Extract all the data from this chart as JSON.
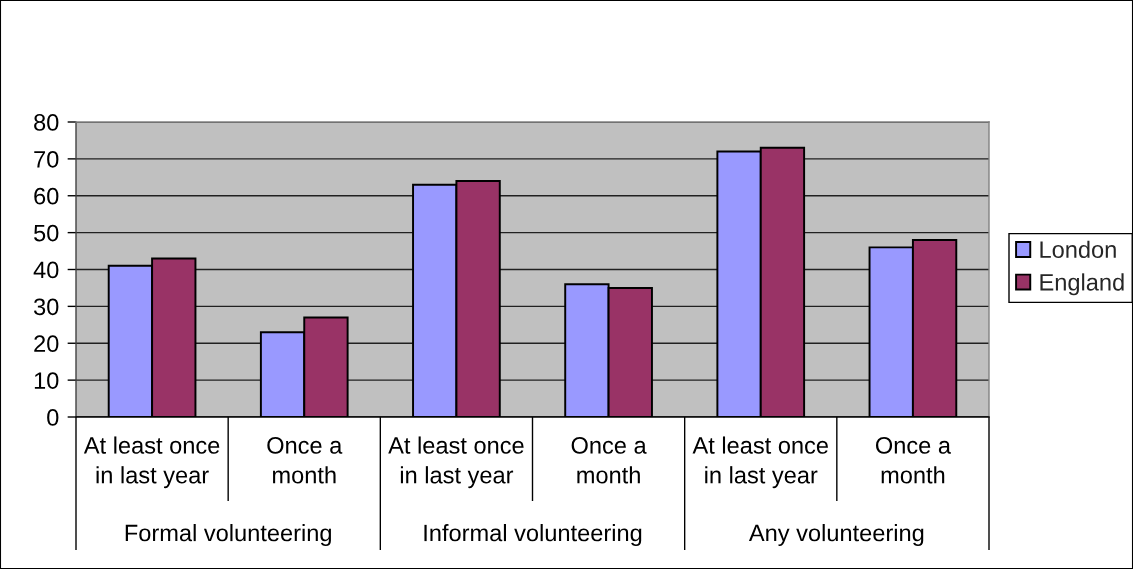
{
  "chart_data": {
    "type": "bar",
    "categories": [
      "At least once\nin last year",
      "Once a\nmonth",
      "At least once\nin last year",
      "Once a\nmonth",
      "At least once\nin last year",
      "Once a\nmonth"
    ],
    "series": [
      {
        "name": "London",
        "color": "#9999ff",
        "values": [
          41,
          23,
          63,
          36,
          72,
          46
        ]
      },
      {
        "name": "England",
        "color": "#993366",
        "values": [
          43,
          27,
          64,
          35,
          73,
          48
        ]
      }
    ],
    "ylim": [
      0,
      80
    ],
    "yticks": [
      0,
      10,
      20,
      30,
      40,
      50,
      60,
      70,
      80
    ],
    "grid": "y",
    "legend": "right",
    "annotations": [
      "Formal volunteering",
      "Informal volunteering",
      "Any volunteering"
    ]
  }
}
